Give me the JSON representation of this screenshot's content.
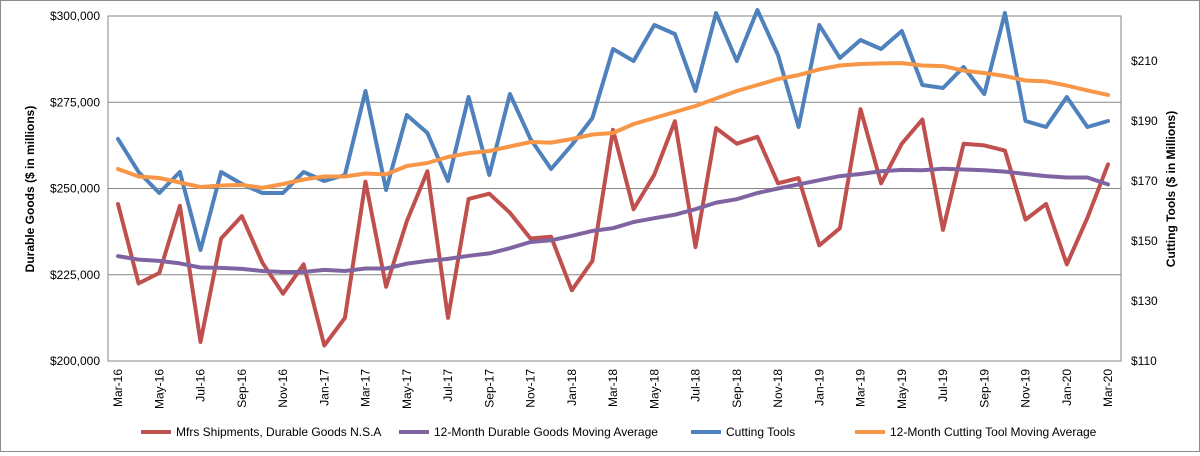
{
  "chart_data": {
    "type": "line",
    "title": "",
    "x": [
      "Mar-16",
      "Apr-16",
      "May-16",
      "Jun-16",
      "Jul-16",
      "Aug-16",
      "Sep-16",
      "Oct-16",
      "Nov-16",
      "Dec-16",
      "Jan-17",
      "Feb-17",
      "Mar-17",
      "Apr-17",
      "May-17",
      "Jun-17",
      "Jul-17",
      "Aug-17",
      "Sep-17",
      "Oct-17",
      "Nov-17",
      "Dec-17",
      "Jan-18",
      "Feb-18",
      "Mar-18",
      "Apr-18",
      "May-18",
      "Jun-18",
      "Jul-18",
      "Aug-18",
      "Sep-18",
      "Oct-18",
      "Nov-18",
      "Dec-18",
      "Jan-19",
      "Feb-19",
      "Mar-19",
      "Apr-19",
      "May-19",
      "Jun-19",
      "Jul-19",
      "Aug-19",
      "Sep-19",
      "Oct-19",
      "Nov-19",
      "Dec-19",
      "Jan-20",
      "Feb-20",
      "Mar-20"
    ],
    "xtick_labels": [
      "Mar-16",
      "May-16",
      "Jul-16",
      "Sep-16",
      "Nov-16",
      "Jan-17",
      "Mar-17",
      "May-17",
      "Jul-17",
      "Sep-17",
      "Nov-17",
      "Jan-18",
      "Mar-18",
      "May-18",
      "Jul-18",
      "Sep-18",
      "Nov-18",
      "Jan-19",
      "Mar-19",
      "May-19",
      "Jul-19",
      "Sep-19",
      "Nov-19",
      "Jan-20",
      "Mar-20"
    ],
    "y_left": {
      "label": "Durable Goods ($ in millions)",
      "range": [
        200000,
        300000
      ],
      "ticks": [
        "$200,000",
        "$225,000",
        "$250,000",
        "$275,000",
        "$300,000"
      ]
    },
    "y_right": {
      "label": "Cutting Tools ($ in Millions)",
      "range": [
        110,
        225
      ],
      "ticks": [
        "$110",
        "$130",
        "$150",
        "$170",
        "$190",
        "$210"
      ]
    },
    "grid": "horizontal",
    "legend_position": "bottom",
    "series": [
      {
        "name": "Mfrs Shipments, Durable Goods N.S.A",
        "axis": "left",
        "color": "#c0504d",
        "values": [
          245500,
          222500,
          225500,
          245000,
          205500,
          235500,
          242000,
          228500,
          219500,
          228000,
          204500,
          212500,
          252000,
          221500,
          240500,
          255000,
          212500,
          247000,
          248500,
          243000,
          235500,
          236000,
          220500,
          229000,
          267000,
          244000,
          254000,
          269500,
          233000,
          267500,
          263000,
          265000,
          251500,
          253000,
          233500,
          238500,
          273000,
          251500,
          263000,
          270000,
          238000,
          263000,
          262500,
          261000,
          241000,
          245500,
          228000,
          241500,
          257000
        ]
      },
      {
        "name": "12-Month Durable Goods Moving Average",
        "axis": "left",
        "color": "#8064a2",
        "values": [
          230400,
          229400,
          229000,
          228300,
          227100,
          227000,
          226700,
          226100,
          225800,
          225800,
          226400,
          226100,
          226800,
          226800,
          228200,
          229000,
          229600,
          230500,
          231200,
          232700,
          234500,
          235000,
          236300,
          237700,
          238500,
          240300,
          241400,
          242400,
          244000,
          245900,
          246900,
          248700,
          250000,
          251200,
          252400,
          253600,
          254200,
          255000,
          255400,
          255300,
          255700,
          255500,
          255300,
          254900,
          254200,
          253600,
          253200,
          253200,
          251200
        ]
      },
      {
        "name": "Cutting Tools",
        "axis": "right",
        "color": "#4f81bd",
        "values": [
          184,
          173,
          166,
          173,
          147,
          173,
          169,
          166,
          166,
          173,
          170,
          172,
          200,
          167,
          192,
          186,
          170,
          198,
          172,
          199,
          184,
          174,
          182,
          191,
          214,
          210,
          222,
          219,
          200,
          226,
          210,
          227,
          212,
          188,
          222,
          211,
          217,
          214,
          220,
          202,
          201,
          208,
          199,
          226,
          190,
          188,
          198,
          188,
          190
        ]
      },
      {
        "name": "12-Month Cutting Tool Moving Average",
        "axis": "right",
        "color": "#f79646",
        "values": [
          174,
          171.5,
          171,
          169.5,
          168,
          168.5,
          168.7,
          167.7,
          169,
          170.5,
          171.5,
          171.5,
          172.5,
          172.2,
          175,
          176,
          178,
          179.3,
          180,
          181.5,
          183,
          182.8,
          184,
          185.5,
          186,
          189,
          191,
          193,
          195,
          197.5,
          200,
          202,
          204,
          205.3,
          207.2,
          208.5,
          209,
          209.2,
          209.3,
          208.5,
          208.3,
          206.8,
          206,
          205,
          203.5,
          203.2,
          201.8,
          200.2,
          198.7
        ]
      }
    ]
  }
}
